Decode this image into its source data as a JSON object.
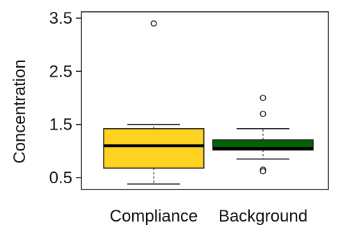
{
  "chart_data": {
    "type": "boxplot",
    "title": "",
    "xlabel": "",
    "ylabel": "Concentration",
    "ylim": [
      0.3,
      3.55
    ],
    "yticks": [
      "0.5",
      "1.5",
      "2.5",
      "3.5"
    ],
    "ytick_values": [
      0.5,
      1.5,
      2.5,
      3.5
    ],
    "grid": false,
    "legend": "none",
    "categories": [
      "Compliance",
      "Background"
    ],
    "boxes": [
      {
        "category": "Compliance",
        "whisker_low": 0.38,
        "q1": 0.68,
        "median": 1.1,
        "q3": 1.42,
        "whisker_high": 1.5,
        "outliers": [
          3.4
        ],
        "fill": "#FFD21F"
      },
      {
        "category": "Background",
        "whisker_low": 0.85,
        "q1": 1.02,
        "median": 1.05,
        "q3": 1.21,
        "whisker_high": 1.42,
        "outliers": [
          2.0,
          1.7,
          0.65,
          0.62
        ],
        "fill": "#006400"
      }
    ]
  }
}
